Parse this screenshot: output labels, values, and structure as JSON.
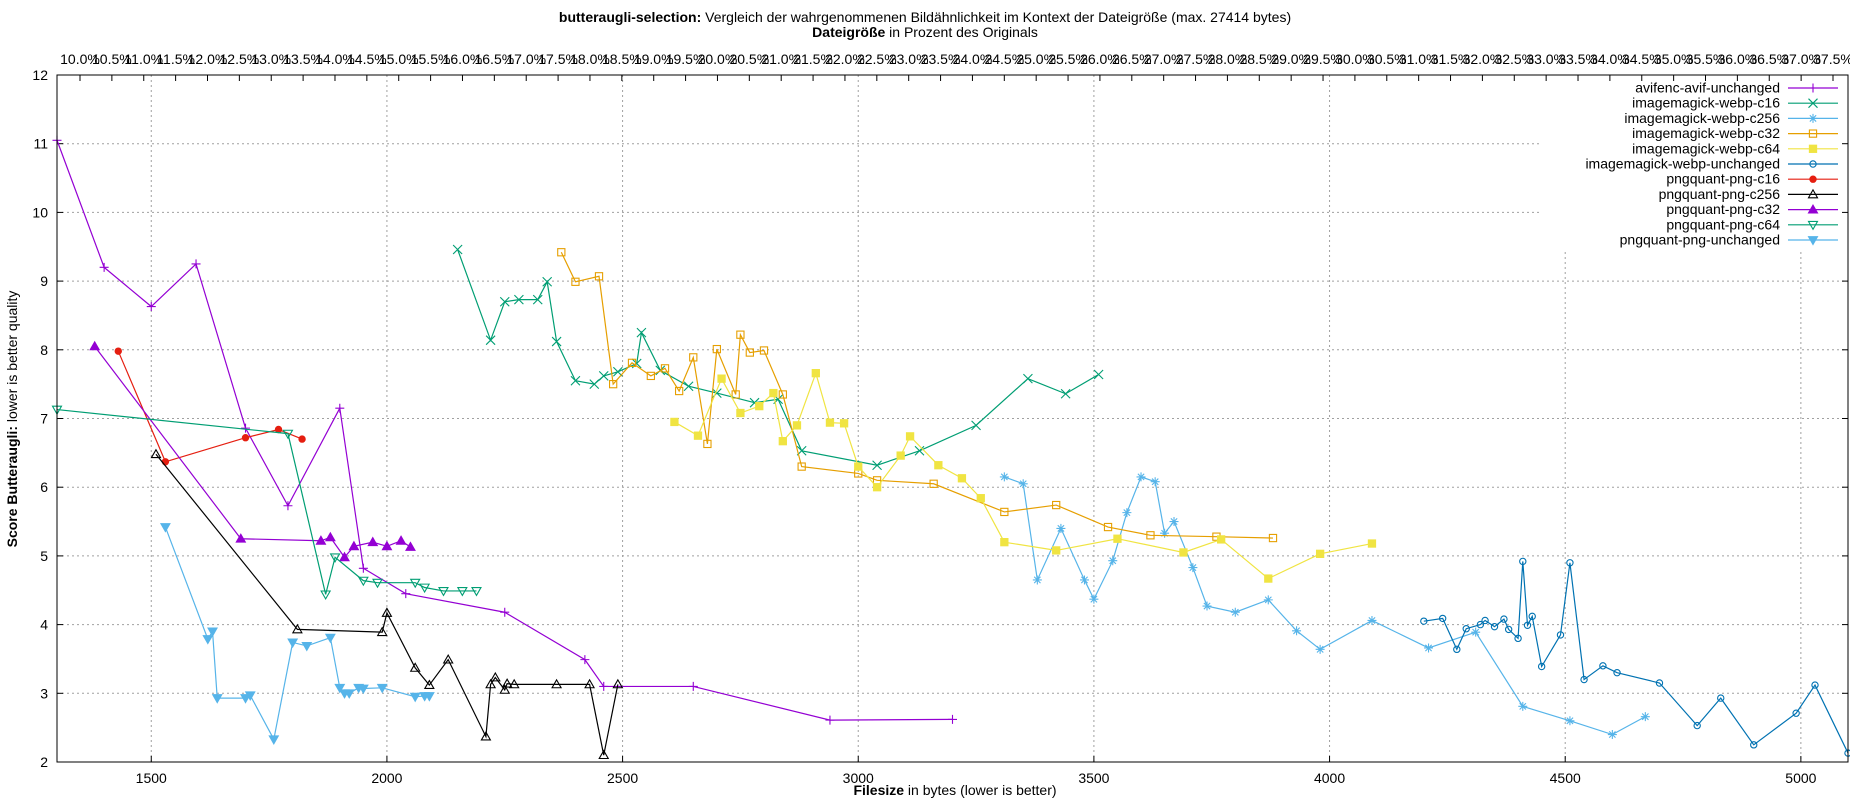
{
  "chart_data": {
    "type": "line",
    "title": {
      "bold": "butteraugli-selection:",
      "rest": " Vergleich der wahrgenommenen Bildähnlichkeit im Kontext der Dateigröße (max. 27414 bytes)"
    },
    "x2label": {
      "bold": "Dateigröße",
      "rest": " in Prozent des Originals"
    },
    "xlabel": {
      "bold": "Filesize",
      "rest": " in bytes (lower is better)"
    },
    "ylabel": {
      "bold": "Score Butteraugli:",
      "rest": " lower is better quality"
    },
    "xlim": [
      1300,
      5100
    ],
    "ylim": [
      2,
      12
    ],
    "grid": true,
    "legend_position": "top-right",
    "x_ticks": [
      1500,
      2000,
      2500,
      3000,
      3500,
      4000,
      4500,
      5000
    ],
    "y_ticks": [
      2,
      3,
      4,
      5,
      6,
      7,
      8,
      9,
      10,
      11,
      12
    ],
    "x2_ticks": [
      "10.0%",
      "10.5%",
      "11.0%",
      "11.5%",
      "12.0%",
      "12.5%",
      "13.0%",
      "13.5%",
      "14.0%",
      "14.5%",
      "15.0%",
      "15.5%",
      "16.0%",
      "16.5%",
      "17.0%",
      "17.5%",
      "18.0%",
      "18.5%",
      "19.0%",
      "19.5%",
      "20.0%",
      "20.5%",
      "21.0%",
      "21.5%",
      "22.0%",
      "22.5%",
      "23.0%",
      "23.5%",
      "24.0%",
      "24.5%",
      "25.0%",
      "25.5%",
      "26.0%",
      "26.5%",
      "27.0%",
      "27.5%",
      "28.0%",
      "28.5%",
      "29.0%",
      "29.5%",
      "30.0%",
      "30.5%",
      "31.0%",
      "31.5%",
      "32.0%",
      "32.5%",
      "33.0%",
      "33.5%",
      "34.0%",
      "34.5%",
      "35.0%",
      "35.5%",
      "36.0%",
      "36.5%",
      "37.0%",
      "37.5%"
    ],
    "series": [
      {
        "name": "avifenc-avif-unchanged",
        "color": "#9400d3",
        "marker": "plus",
        "points": [
          [
            1300,
            11.05
          ],
          [
            1400,
            9.2
          ],
          [
            1500,
            8.63
          ],
          [
            1595,
            9.25
          ],
          [
            1700,
            6.86
          ],
          [
            1790,
            5.73
          ],
          [
            1900,
            7.15
          ],
          [
            1950,
            4.82
          ],
          [
            2040,
            4.45
          ],
          [
            2250,
            4.18
          ],
          [
            2420,
            3.49
          ],
          [
            2460,
            3.1
          ],
          [
            2650,
            3.1
          ],
          [
            2940,
            2.61
          ],
          [
            3200,
            2.62
          ]
        ]
      },
      {
        "name": "imagemagick-webp-c16",
        "color": "#009e73",
        "marker": "x",
        "points": [
          [
            2150,
            9.46
          ],
          [
            2220,
            8.14
          ],
          [
            2250,
            8.7
          ],
          [
            2280,
            8.73
          ],
          [
            2320,
            8.73
          ],
          [
            2340,
            8.99
          ],
          [
            2360,
            8.12
          ],
          [
            2400,
            7.55
          ],
          [
            2440,
            7.5
          ],
          [
            2460,
            7.62
          ],
          [
            2490,
            7.68
          ],
          [
            2530,
            7.8
          ],
          [
            2540,
            8.25
          ],
          [
            2580,
            7.7
          ],
          [
            2640,
            7.47
          ],
          [
            2700,
            7.37
          ],
          [
            2780,
            7.23
          ],
          [
            2830,
            7.28
          ],
          [
            2880,
            6.53
          ],
          [
            3040,
            6.32
          ],
          [
            3130,
            6.53
          ],
          [
            3250,
            6.9
          ],
          [
            3360,
            7.58
          ],
          [
            3440,
            7.36
          ],
          [
            3510,
            7.64
          ]
        ]
      },
      {
        "name": "imagemagick-webp-c256",
        "color": "#56b4e9",
        "marker": "star",
        "points": [
          [
            3310,
            6.15
          ],
          [
            3350,
            6.05
          ],
          [
            3380,
            4.65
          ],
          [
            3430,
            5.4
          ],
          [
            3480,
            4.65
          ],
          [
            3500,
            4.37
          ],
          [
            3540,
            4.93
          ],
          [
            3570,
            5.63
          ],
          [
            3600,
            6.15
          ],
          [
            3630,
            6.08
          ],
          [
            3650,
            5.33
          ],
          [
            3670,
            5.5
          ],
          [
            3710,
            4.83
          ],
          [
            3740,
            4.27
          ],
          [
            3800,
            4.18
          ],
          [
            3870,
            4.36
          ],
          [
            3930,
            3.91
          ],
          [
            3980,
            3.64
          ],
          [
            4090,
            4.06
          ],
          [
            4210,
            3.66
          ],
          [
            4310,
            3.89
          ],
          [
            4410,
            2.81
          ],
          [
            4510,
            2.6
          ],
          [
            4600,
            2.4
          ],
          [
            4670,
            2.66
          ]
        ]
      },
      {
        "name": "imagemagick-webp-c32",
        "color": "#e69f00",
        "marker": "square",
        "points": [
          [
            2370,
            9.42
          ],
          [
            2400,
            8.99
          ],
          [
            2450,
            9.07
          ],
          [
            2480,
            7.5
          ],
          [
            2520,
            7.81
          ],
          [
            2560,
            7.62
          ],
          [
            2590,
            7.73
          ],
          [
            2620,
            7.4
          ],
          [
            2650,
            7.89
          ],
          [
            2680,
            6.63
          ],
          [
            2700,
            8.01
          ],
          [
            2740,
            7.35
          ],
          [
            2750,
            8.22
          ],
          [
            2770,
            7.96
          ],
          [
            2800,
            7.99
          ],
          [
            2840,
            7.35
          ],
          [
            2880,
            6.3
          ],
          [
            3000,
            6.2
          ],
          [
            3040,
            6.1
          ],
          [
            3160,
            6.05
          ],
          [
            3310,
            5.64
          ],
          [
            3420,
            5.74
          ],
          [
            3530,
            5.42
          ],
          [
            3620,
            5.3
          ],
          [
            3760,
            5.28
          ],
          [
            3880,
            5.26
          ]
        ]
      },
      {
        "name": "imagemagick-webp-c64",
        "color": "#f0e442",
        "marker": "filled-square",
        "points": [
          [
            2610,
            6.95
          ],
          [
            2660,
            6.75
          ],
          [
            2710,
            7.58
          ],
          [
            2750,
            7.08
          ],
          [
            2790,
            7.18
          ],
          [
            2820,
            7.37
          ],
          [
            2840,
            6.67
          ],
          [
            2870,
            6.9
          ],
          [
            2910,
            7.66
          ],
          [
            2940,
            6.94
          ],
          [
            2970,
            6.93
          ],
          [
            3000,
            6.3
          ],
          [
            3040,
            6.0
          ],
          [
            3090,
            6.46
          ],
          [
            3110,
            6.74
          ],
          [
            3170,
            6.32
          ],
          [
            3220,
            6.13
          ],
          [
            3260,
            5.84
          ],
          [
            3310,
            5.2
          ],
          [
            3420,
            5.08
          ],
          [
            3550,
            5.25
          ],
          [
            3690,
            5.05
          ],
          [
            3770,
            5.24
          ],
          [
            3870,
            4.67
          ],
          [
            3980,
            5.03
          ],
          [
            4090,
            5.18
          ]
        ]
      },
      {
        "name": "imagemagick-webp-unchanged",
        "color": "#0072b2",
        "marker": "circle",
        "points": [
          [
            4200,
            4.05
          ],
          [
            4240,
            4.09
          ],
          [
            4270,
            3.64
          ],
          [
            4290,
            3.94
          ],
          [
            4320,
            4.0
          ],
          [
            4330,
            4.06
          ],
          [
            4350,
            3.97
          ],
          [
            4370,
            4.08
          ],
          [
            4380,
            3.93
          ],
          [
            4400,
            3.8
          ],
          [
            4410,
            4.92
          ],
          [
            4420,
            3.99
          ],
          [
            4430,
            4.12
          ],
          [
            4450,
            3.39
          ],
          [
            4490,
            3.85
          ],
          [
            4510,
            4.9
          ],
          [
            4540,
            3.2
          ],
          [
            4580,
            3.4
          ],
          [
            4610,
            3.3
          ],
          [
            4700,
            3.15
          ],
          [
            4780,
            2.53
          ],
          [
            4830,
            2.93
          ],
          [
            4900,
            2.25
          ],
          [
            4990,
            2.71
          ],
          [
            5030,
            3.12
          ],
          [
            5100,
            2.13
          ]
        ]
      },
      {
        "name": "pngquant-png-c16",
        "color": "#e51e10",
        "marker": "filled-circle",
        "points": [
          [
            1430,
            7.98
          ],
          [
            1530,
            6.37
          ],
          [
            1700,
            6.72
          ],
          [
            1770,
            6.84
          ],
          [
            1820,
            6.7
          ]
        ]
      },
      {
        "name": "pngquant-png-c256",
        "color": "#000000",
        "marker": "triangle",
        "points": [
          [
            1510,
            6.48
          ],
          [
            1810,
            3.93
          ],
          [
            1990,
            3.89
          ],
          [
            2000,
            4.17
          ],
          [
            2060,
            3.37
          ],
          [
            2090,
            3.12
          ],
          [
            2130,
            3.49
          ],
          [
            2210,
            2.37
          ],
          [
            2220,
            3.13
          ],
          [
            2230,
            3.23
          ],
          [
            2250,
            3.05
          ],
          [
            2255,
            3.14
          ],
          [
            2270,
            3.13
          ],
          [
            2360,
            3.13
          ],
          [
            2430,
            3.13
          ],
          [
            2460,
            2.1
          ],
          [
            2490,
            3.13
          ]
        ]
      },
      {
        "name": "pngquant-png-c32",
        "color": "#9400d3",
        "marker": "filled-triangle",
        "points": [
          [
            1380,
            8.05
          ],
          [
            1690,
            5.25
          ],
          [
            1860,
            5.22
          ],
          [
            1880,
            5.27
          ],
          [
            1910,
            4.98
          ],
          [
            1930,
            5.14
          ],
          [
            1970,
            5.2
          ],
          [
            2000,
            5.14
          ],
          [
            2030,
            5.22
          ],
          [
            2050,
            5.13
          ]
        ]
      },
      {
        "name": "pngquant-png-c64",
        "color": "#009e73",
        "marker": "inverted-triangle",
        "points": [
          [
            1300,
            7.13
          ],
          [
            1790,
            6.78
          ],
          [
            1870,
            4.44
          ],
          [
            1890,
            4.98
          ],
          [
            1950,
            4.64
          ],
          [
            1980,
            4.61
          ],
          [
            2060,
            4.61
          ],
          [
            2080,
            4.54
          ],
          [
            2120,
            4.49
          ],
          [
            2160,
            4.49
          ],
          [
            2190,
            4.49
          ]
        ]
      },
      {
        "name": "pngquant-png-unchanged",
        "color": "#56b4e9",
        "marker": "filled-inverted-triangle",
        "points": [
          [
            1530,
            5.42
          ],
          [
            1620,
            3.79
          ],
          [
            1630,
            3.9
          ],
          [
            1640,
            2.93
          ],
          [
            1700,
            2.93
          ],
          [
            1710,
            2.97
          ],
          [
            1760,
            2.33
          ],
          [
            1800,
            3.74
          ],
          [
            1830,
            3.69
          ],
          [
            1880,
            3.81
          ],
          [
            1900,
            3.08
          ],
          [
            1910,
            3.0
          ],
          [
            1920,
            3.0
          ],
          [
            1940,
            3.08
          ],
          [
            1950,
            3.07
          ],
          [
            1990,
            3.08
          ],
          [
            2060,
            2.95
          ],
          [
            2080,
            2.96
          ],
          [
            2090,
            2.96
          ]
        ]
      }
    ]
  }
}
